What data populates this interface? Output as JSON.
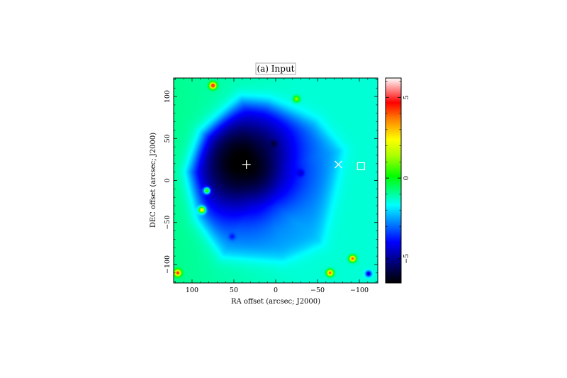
{
  "chart_data": {
    "type": "heatmap",
    "title": "(a) Input",
    "xlabel": "RA offset (arcsec; J2000)",
    "ylabel": "DEC offset (arcsec; J2000)",
    "xlim": [
      122,
      -122
    ],
    "ylim": [
      -122,
      122
    ],
    "x_ticks": [
      100,
      50,
      0,
      -50,
      -100
    ],
    "x_tick_labels": [
      "100",
      "50",
      "0",
      "−50",
      "−100"
    ],
    "y_ticks": [
      100,
      50,
      0,
      -50,
      -100
    ],
    "y_tick_labels": [
      "100",
      "50",
      "0",
      "−50",
      "−100"
    ],
    "colorbar": {
      "range": [
        -6.5,
        6.2
      ],
      "ticks": [
        5,
        0,
        -5
      ],
      "tick_labels": [
        "5",
        "0",
        "−5"
      ],
      "colormap": [
        "#000000",
        "#0000ff",
        "#00ffff",
        "#00ff00",
        "#ffff00",
        "#ff0000",
        "#ffffff"
      ]
    },
    "background_level": -1.7,
    "main_depression": {
      "core_level": -6.5,
      "level_at_center": -5.8,
      "polygon": [
        [
          40,
          95
        ],
        [
          85,
          55
        ],
        [
          102,
          10
        ],
        [
          90,
          -45
        ],
        [
          62,
          -88
        ],
        [
          -8,
          -92
        ],
        [
          -52,
          -72
        ],
        [
          -76,
          35
        ],
        [
          -46,
          68
        ],
        [
          10,
          92
        ]
      ],
      "core_center": [
        35,
        18
      ],
      "core_radius": 45
    },
    "point_sources": [
      {
        "ra": 75,
        "dec": 113,
        "level": 5
      },
      {
        "ra": -25,
        "dec": 97,
        "level": 1
      },
      {
        "ra": 2,
        "dec": 44,
        "level": -2.5
      },
      {
        "ra": -30,
        "dec": 9,
        "level": -2.5
      },
      {
        "ra": 52,
        "dec": -67,
        "level": -2.5
      },
      {
        "ra": 82,
        "dec": -12,
        "level": 3
      },
      {
        "ra": 88,
        "dec": -35,
        "level": 4
      },
      {
        "ra": 117,
        "dec": -110,
        "level": 4
      },
      {
        "ra": -65,
        "dec": -110,
        "level": 4
      },
      {
        "ra": -92,
        "dec": -93,
        "level": 4
      },
      {
        "ra": -111,
        "dec": -111,
        "level": -4.5
      }
    ],
    "markers": [
      {
        "symbol": "plus",
        "ra": 35,
        "dec": 19
      },
      {
        "symbol": "cross",
        "ra": -75,
        "dec": 19
      },
      {
        "symbol": "square",
        "ra": -102,
        "dec": 17
      }
    ]
  }
}
